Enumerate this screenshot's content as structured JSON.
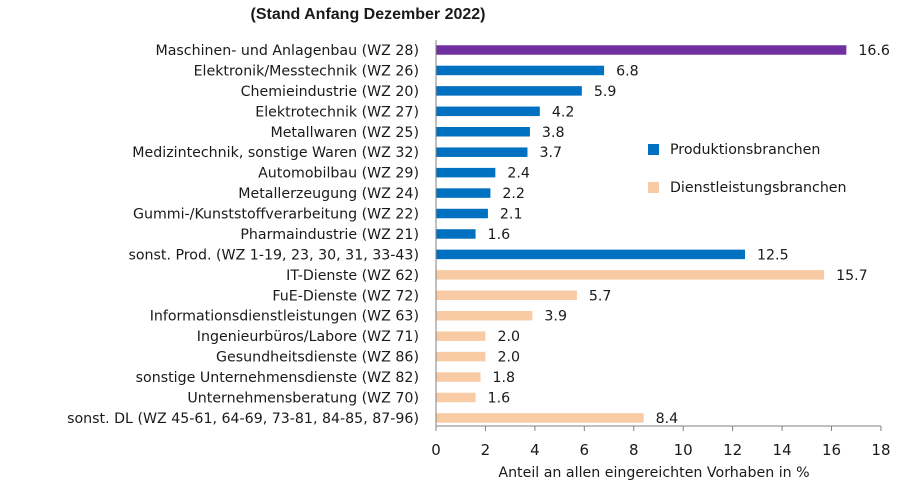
{
  "chart_data": {
    "type": "bar",
    "orientation": "horizontal",
    "title": "(Stand Anfang Dezember 2022)",
    "xlabel": "Anteil an allen eingereichten Vorhaben in %",
    "ylabel": "",
    "xlim": [
      0,
      18
    ],
    "xticks": [
      0,
      2,
      4,
      6,
      8,
      10,
      12,
      14,
      16,
      18
    ],
    "grid": false,
    "legend_position": "right",
    "colors": {
      "highlight": "#7030a0",
      "Produktionsbranchen": "#0070c0",
      "Dienstleistungsbranchen": "#f8cba4"
    },
    "legend": [
      {
        "name": "Produktionsbranchen",
        "color": "#0070c0"
      },
      {
        "name": "Dienstleistungsbranchen",
        "color": "#f8cba4"
      }
    ],
    "bars": [
      {
        "label": "Maschinen- und Anlagenbau (WZ 28)",
        "value": 16.6,
        "value_label": "16.6",
        "group": "highlight"
      },
      {
        "label": "Elektronik/Messtechnik (WZ 26)",
        "value": 6.8,
        "value_label": "6.8",
        "group": "Produktionsbranchen"
      },
      {
        "label": "Chemieindustrie (WZ 20)",
        "value": 5.9,
        "value_label": "5.9",
        "group": "Produktionsbranchen"
      },
      {
        "label": "Elektrotechnik (WZ 27)",
        "value": 4.2,
        "value_label": "4.2",
        "group": "Produktionsbranchen"
      },
      {
        "label": "Metallwaren (WZ 25)",
        "value": 3.8,
        "value_label": "3.8",
        "group": "Produktionsbranchen"
      },
      {
        "label": "Medizintechnik, sonstige Waren (WZ 32)",
        "value": 3.7,
        "value_label": "3.7",
        "group": "Produktionsbranchen"
      },
      {
        "label": "Automobilbau (WZ 29)",
        "value": 2.4,
        "value_label": "2.4",
        "group": "Produktionsbranchen"
      },
      {
        "label": "Metallerzeugung (WZ 24)",
        "value": 2.2,
        "value_label": "2.2",
        "group": "Produktionsbranchen"
      },
      {
        "label": "Gummi-/Kunststoffverarbeitung (WZ 22)",
        "value": 2.1,
        "value_label": "2.1",
        "group": "Produktionsbranchen"
      },
      {
        "label": "Pharmaindustrie (WZ 21)",
        "value": 1.6,
        "value_label": "1.6",
        "group": "Produktionsbranchen"
      },
      {
        "label": "sonst. Prod. (WZ 1-19, 23, 30, 31, 33-43)",
        "value": 12.5,
        "value_label": "12.5",
        "group": "Produktionsbranchen"
      },
      {
        "label": "IT-Dienste (WZ 62)",
        "value": 15.7,
        "value_label": "15.7",
        "group": "Dienstleistungsbranchen"
      },
      {
        "label": "FuE-Dienste (WZ 72)",
        "value": 5.7,
        "value_label": "5.7",
        "group": "Dienstleistungsbranchen"
      },
      {
        "label": "Informationsdienstleistungen (WZ 63)",
        "value": 3.9,
        "value_label": "3.9",
        "group": "Dienstleistungsbranchen"
      },
      {
        "label": "Ingenieurbüros/Labore (WZ 71)",
        "value": 2.0,
        "value_label": "2.0",
        "group": "Dienstleistungsbranchen"
      },
      {
        "label": "Gesundheitsdienste (WZ 86)",
        "value": 2.0,
        "value_label": "2.0",
        "group": "Dienstleistungsbranchen"
      },
      {
        "label": "sonstige Unternehmensdienste (WZ 82)",
        "value": 1.8,
        "value_label": "1.8",
        "group": "Dienstleistungsbranchen"
      },
      {
        "label": "Unternehmensberatung (WZ 70)",
        "value": 1.6,
        "value_label": "1.6",
        "group": "Dienstleistungsbranchen"
      },
      {
        "label": "sonst. DL (WZ 45-61, 64-69, 73-81, 84-85, 87-96)",
        "value": 8.4,
        "value_label": "8.4",
        "group": "Dienstleistungsbranchen"
      }
    ]
  }
}
